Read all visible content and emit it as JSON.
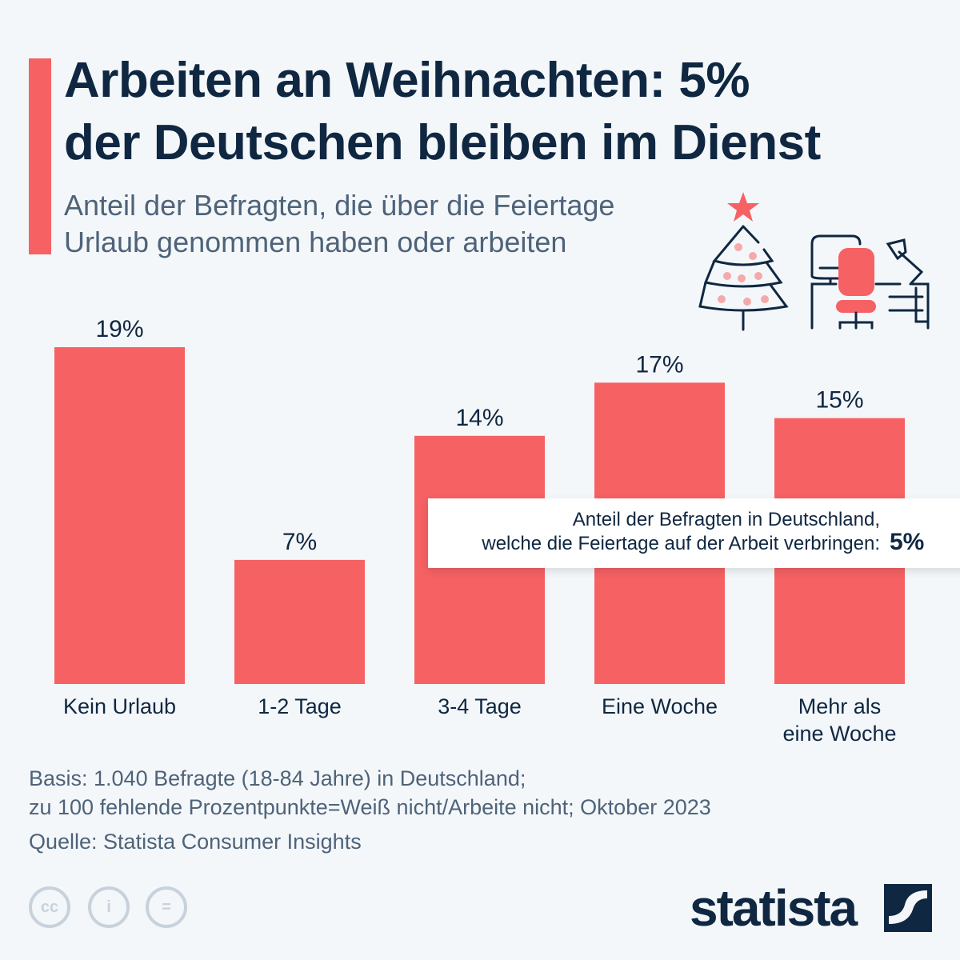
{
  "title": "Arbeiten an Weihnachten: 5% der Deutschen bleiben im Dienst",
  "title_line1": "Arbeiten an Weihnachten: 5%",
  "title_line2": "der Deutschen bleiben im Dienst",
  "subtitle_line1": "Anteil der Befragten, die über die Feiertage",
  "subtitle_line2": "Urlaub genommen haben oder arbeiten",
  "colors": {
    "bar": "#f66163",
    "text": "#0f2741",
    "accent": "#f66163"
  },
  "chart_data": {
    "type": "bar",
    "categories": [
      "Kein Urlaub",
      "1-2 Tage",
      "3-4 Tage",
      "Eine Woche",
      "Mehr als eine Woche"
    ],
    "category_lines": [
      [
        "Kein Urlaub"
      ],
      [
        "1-2 Tage"
      ],
      [
        "3-4 Tage"
      ],
      [
        "Eine Woche"
      ],
      [
        "Mehr als",
        "eine Woche"
      ]
    ],
    "values": [
      19,
      7,
      14,
      17,
      15
    ],
    "data_labels": [
      "19%",
      "7%",
      "14%",
      "17%",
      "15%"
    ],
    "unit": "%",
    "ylim": [
      0,
      19
    ],
    "grid": false
  },
  "callout": {
    "line1": "Anteil der Befragten in Deutschland,",
    "line2": "welche die Feiertage auf der Arbeit verbringen:",
    "value": "5%"
  },
  "footer": {
    "basis1": "Basis: 1.040 Befragte (18-84 Jahre) in Deutschland;",
    "basis2": "zu 100 fehlende Prozentpunkte=Weiß nicht/Arbeite nicht; Oktober 2023",
    "source": "Quelle: Statista Consumer Insights"
  },
  "license_icons": [
    "cc-icon",
    "attribution-icon",
    "no-derivatives-icon"
  ],
  "logo": "statista"
}
